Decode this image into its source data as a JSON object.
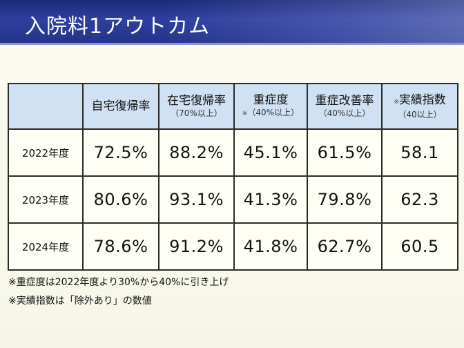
{
  "title": "入院料1アウトカム",
  "table": {
    "headers": [
      {
        "main": "",
        "sub": "",
        "note": ""
      },
      {
        "main": "自宅復帰率",
        "sub": "",
        "note": ""
      },
      {
        "main": "在宅復帰率",
        "sub": "（70%以上）",
        "note": ""
      },
      {
        "main": "重症度",
        "sub": "（40%以上）",
        "note": "※"
      },
      {
        "main": "重症改善率",
        "sub": "（40%以上）",
        "note": ""
      },
      {
        "main": "実績指数",
        "sub": "（40以上）",
        "note": "※"
      }
    ],
    "rows": [
      {
        "label": "2022年度",
        "values": [
          "72.5%",
          "88.2%",
          "45.1%",
          "61.5%",
          "58.1"
        ]
      },
      {
        "label": "2023年度",
        "values": [
          "80.6%",
          "93.1%",
          "41.3%",
          "79.8%",
          "62.3"
        ]
      },
      {
        "label": "2024年度",
        "values": [
          "78.6%",
          "91.2%",
          "41.8%",
          "62.7%",
          "60.5"
        ]
      }
    ]
  },
  "notes": [
    "※重症度は2022年度より30%から40%に引き上げ",
    "※実績指数は「除外あり」の数値"
  ]
}
